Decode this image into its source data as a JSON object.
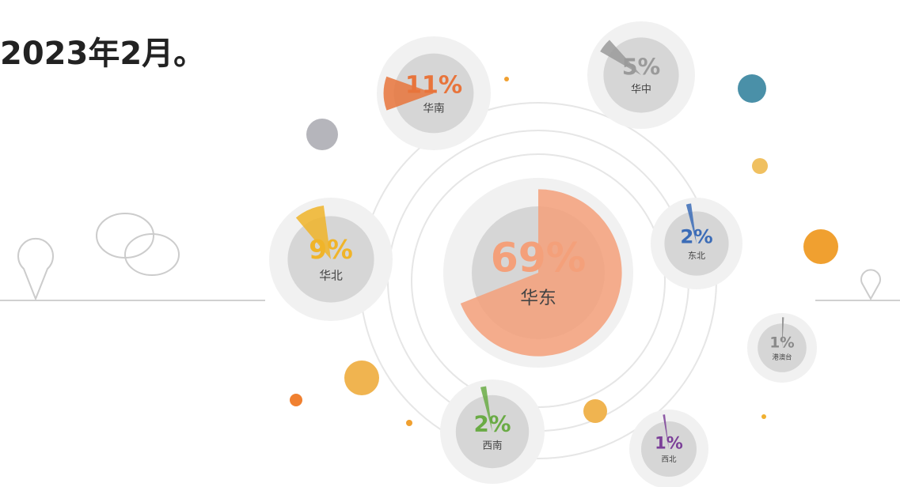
{
  "text": {
    "line": "2023年2月。"
  },
  "chart_data": {
    "type": "pie",
    "categories": [
      "华东",
      "华南",
      "华北",
      "华中",
      "东北",
      "西南",
      "港澳台",
      "西北"
    ],
    "values": [
      69,
      11,
      9,
      5,
      2,
      2,
      1,
      1
    ],
    "value_labels": [
      "69%",
      "11%",
      "9%",
      "5%",
      "2%",
      "2%",
      "1%",
      "1%"
    ],
    "colors": [
      "#f4a07a",
      "#e8743b",
      "#f0b429",
      "#9a9a9a",
      "#3b6cb7",
      "#6aab45",
      "#8a8a8a",
      "#7b3f98"
    ]
  }
}
